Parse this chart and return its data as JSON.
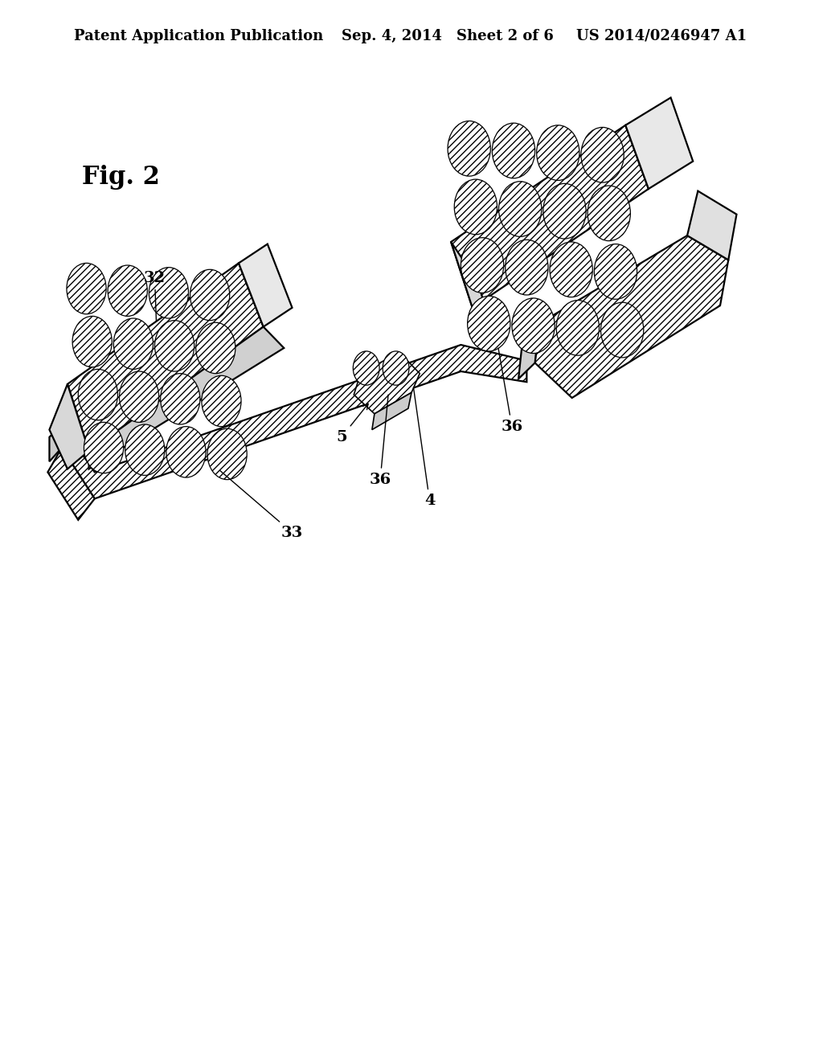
{
  "bg_color": "#ffffff",
  "header_text": "Patent Application Publication",
  "header_date": "Sep. 4, 2014",
  "header_sheet": "Sheet 2 of 6",
  "header_patent": "US 2014/0246947 A1",
  "fig_label": "Fig. 2",
  "lw_main": 1.6,
  "header_fontsize": 13,
  "fig_label_fontsize": 22,
  "label_fontsize": 14
}
